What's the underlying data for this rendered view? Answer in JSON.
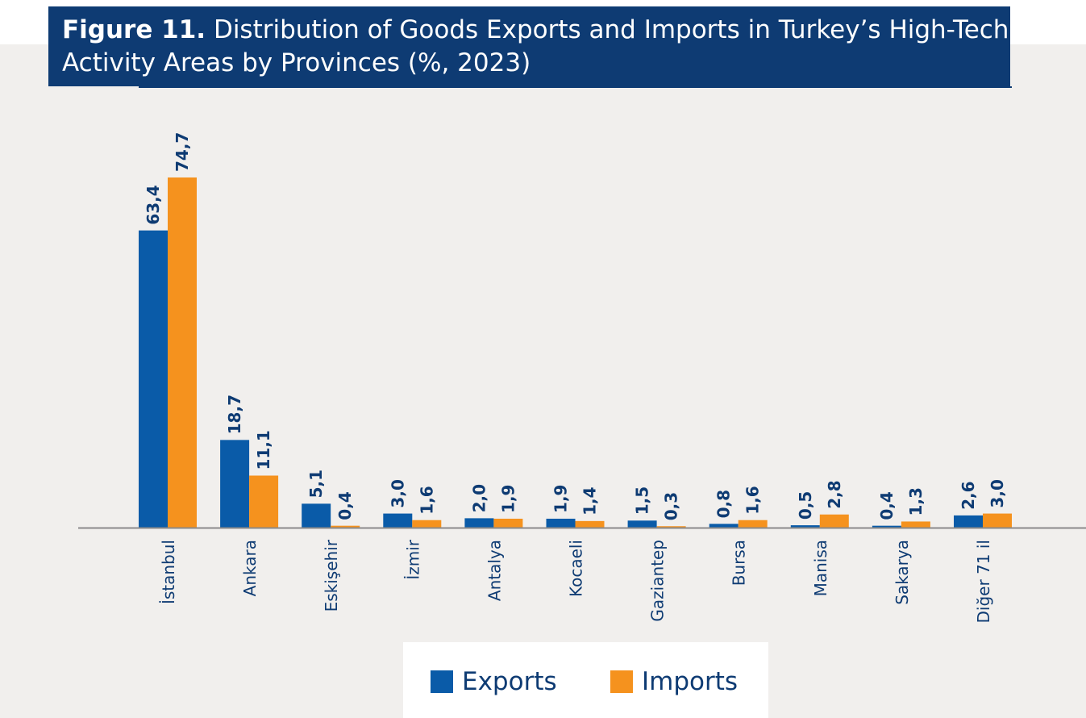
{
  "figure": {
    "label": "Figure 11.",
    "title": "Distribution of Goods Exports and Imports in Turkey’s High-Tech Activity Areas by Provinces (%, 2023)"
  },
  "colors": {
    "header_bg": "#0e3b73",
    "exports": "#0a5ba8",
    "imports": "#f5921e",
    "value_label": "#0e3b73",
    "axis_text": "#0e3b73"
  },
  "legend": {
    "exports": "Exports",
    "imports": "Imports"
  },
  "chart_data": {
    "type": "bar",
    "categories": [
      "İstanbul",
      "Ankara",
      "Eskişehir",
      "İzmir",
      "Antalya",
      "Kocaeli",
      "Gaziantep",
      "Bursa",
      "Manisa",
      "Sakarya",
      "Diğer 71 il"
    ],
    "series": [
      {
        "name": "Exports",
        "values": [
          63.4,
          18.7,
          5.1,
          3.0,
          2.0,
          1.9,
          1.5,
          0.8,
          0.5,
          0.4,
          2.6
        ]
      },
      {
        "name": "Imports",
        "values": [
          74.7,
          11.1,
          0.4,
          1.6,
          1.9,
          1.4,
          0.3,
          1.6,
          2.8,
          1.3,
          3.0
        ]
      }
    ],
    "value_labels": [
      [
        "63,4",
        "18,7",
        "5,1",
        "3,0",
        "2,0",
        "1,9",
        "1,5",
        "0,8",
        "0,5",
        "0,4",
        "2,6"
      ],
      [
        "74,7",
        "11,1",
        "0,4",
        "1,6",
        "1,9",
        "1,4",
        "0,3",
        "1,6",
        "2,8",
        "1,3",
        "3,0"
      ]
    ],
    "ylim": [
      0,
      80
    ],
    "grid": false,
    "legend_position": "bottom-center",
    "xlabel": "",
    "ylabel": ""
  }
}
